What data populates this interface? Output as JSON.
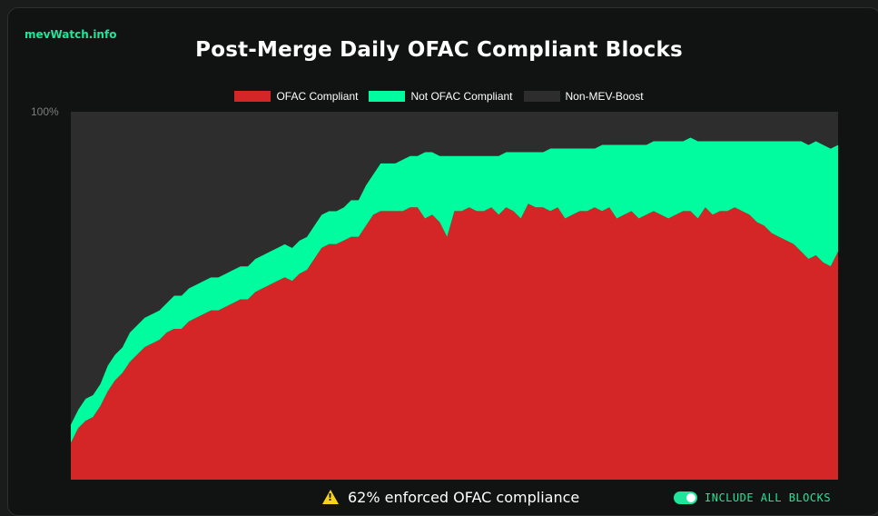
{
  "header": {
    "brand": "mevWatch.info",
    "title": "Post-Merge Daily OFAC Compliant Blocks"
  },
  "colors": {
    "ofac": "#d42626",
    "not_ofac": "#00fc9e",
    "non_mev": "#2d2d2d",
    "accent": "#1fe59a"
  },
  "footer": {
    "message": "62% enforced OFAC compliance",
    "toggle_label": "INCLUDE ALL BLOCKS",
    "toggle_on": true,
    "warning_icon": "warning-icon"
  },
  "chart_data": {
    "type": "area",
    "stacked": true,
    "title": "Post-Merge Daily OFAC Compliant Blocks",
    "legend_position": "top",
    "ylim": [
      0,
      100
    ],
    "y_tick_labels": [
      "100%"
    ],
    "grid": false,
    "series": [
      {
        "name": "OFAC Compliant",
        "color": "#d42626",
        "values": [
          10,
          14,
          16,
          17,
          20,
          24,
          27,
          29,
          32,
          34,
          36,
          37,
          38,
          40,
          41,
          41,
          43,
          44,
          45,
          46,
          46,
          47,
          48,
          49,
          49,
          51,
          52,
          53,
          54,
          55,
          54,
          56,
          57,
          60,
          63,
          64,
          64,
          65,
          66,
          66,
          69,
          72,
          73,
          73,
          73,
          73,
          74,
          74,
          71,
          72,
          70,
          66,
          73,
          73,
          74,
          73,
          73,
          74,
          72,
          74,
          73,
          71,
          75,
          74,
          74,
          73,
          74,
          71,
          72,
          73,
          73,
          74,
          73,
          74,
          71,
          72,
          73,
          71,
          72,
          73,
          72,
          71,
          72,
          73,
          73,
          71,
          74,
          72,
          73,
          73,
          74,
          73,
          72,
          70,
          69,
          67,
          66,
          65,
          64,
          62,
          60,
          61,
          59,
          58,
          62
        ]
      },
      {
        "name": "Not OFAC Compliant",
        "color": "#00fc9e",
        "values": [
          5,
          5,
          6,
          6,
          6,
          7,
          7,
          7,
          8,
          8,
          8,
          8,
          8,
          8,
          9,
          9,
          9,
          9,
          9,
          9,
          9,
          9,
          9,
          9,
          9,
          9,
          9,
          9,
          9,
          9,
          9,
          9,
          9,
          9,
          9,
          9,
          9,
          9,
          10,
          10,
          11,
          11,
          13,
          13,
          13,
          14,
          14,
          14,
          18,
          17,
          18,
          22,
          15,
          15,
          14,
          15,
          15,
          14,
          16,
          15,
          16,
          18,
          14,
          15,
          15,
          17,
          16,
          19,
          18,
          17,
          17,
          16,
          18,
          17,
          20,
          19,
          18,
          20,
          19,
          19,
          20,
          21,
          20,
          19,
          20,
          21,
          18,
          20,
          19,
          19,
          18,
          19,
          20,
          22,
          23,
          25,
          26,
          27,
          28,
          30,
          31,
          31,
          32,
          32,
          29
        ]
      },
      {
        "name": "Non-MEV-Boost",
        "color": "#2d2d2d",
        "values": [
          85,
          81,
          78,
          77,
          74,
          69,
          66,
          64,
          60,
          58,
          56,
          55,
          54,
          52,
          50,
          50,
          48,
          47,
          46,
          45,
          45,
          44,
          43,
          42,
          42,
          40,
          39,
          38,
          37,
          36,
          37,
          35,
          34,
          31,
          28,
          27,
          27,
          26,
          24,
          24,
          20,
          17,
          14,
          14,
          14,
          13,
          12,
          12,
          11,
          11,
          12,
          12,
          12,
          12,
          12,
          12,
          12,
          12,
          12,
          11,
          11,
          11,
          11,
          11,
          11,
          10,
          10,
          10,
          10,
          10,
          10,
          10,
          9,
          9,
          9,
          9,
          9,
          9,
          9,
          8,
          8,
          8,
          8,
          8,
          7,
          8,
          8,
          8,
          8,
          8,
          8,
          8,
          8,
          8,
          8,
          8,
          8,
          8,
          8,
          8,
          9,
          8,
          9,
          10,
          9
        ]
      }
    ]
  }
}
